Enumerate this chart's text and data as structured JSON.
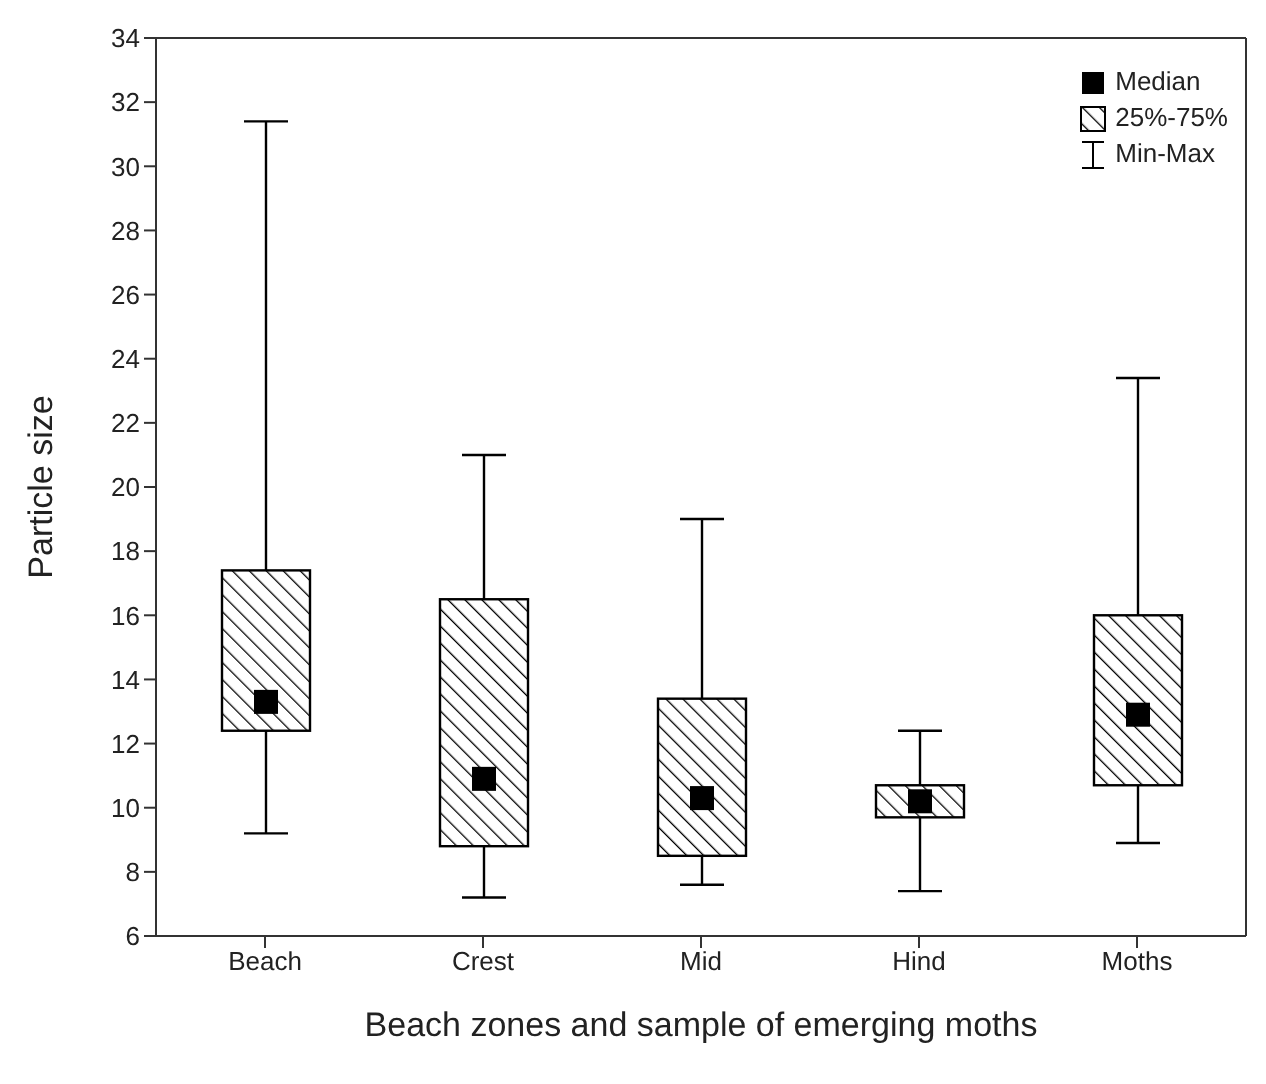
{
  "chart_data": {
    "type": "box",
    "xlabel": "Beach zones and sample of emerging moths",
    "ylabel": "Particle size",
    "categories": [
      "Beach",
      "Crest",
      "Mid",
      "Hind",
      "Moths"
    ],
    "color": "#000000",
    "boxes": [
      {
        "low": 9.2,
        "q1": 12.4,
        "median": 13.3,
        "q3": 17.4,
        "high": 31.4
      },
      {
        "low": 7.2,
        "q1": 8.8,
        "median": 10.9,
        "q3": 16.5,
        "high": 21.0
      },
      {
        "low": 7.6,
        "q1": 8.5,
        "median": 10.3,
        "q3": 13.4,
        "high": 19.0
      },
      {
        "low": 7.4,
        "q1": 9.7,
        "median": 10.2,
        "q3": 10.7,
        "high": 12.4
      },
      {
        "low": 8.9,
        "q1": 10.7,
        "median": 12.9,
        "q3": 16.0,
        "high": 23.4
      }
    ],
    "ylim": [
      6,
      34
    ],
    "yticks": [
      6,
      8,
      10,
      12,
      14,
      16,
      18,
      20,
      22,
      24,
      26,
      28,
      30,
      32,
      34
    ],
    "annotations": [
      "Median",
      "25%-75%",
      "Min-Max"
    ]
  }
}
